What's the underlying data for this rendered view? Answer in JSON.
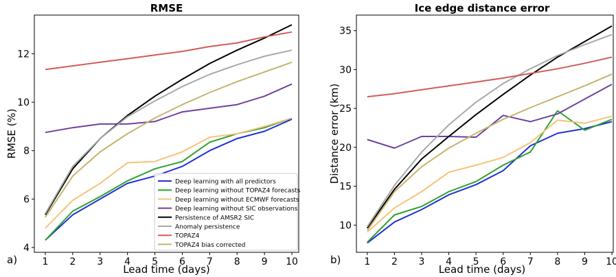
{
  "panels": [
    {
      "label": "a)"
    },
    {
      "label": "b)"
    }
  ],
  "chart_data": [
    {
      "type": "line",
      "title": "RMSE",
      "xlabel": "Lead time (days)",
      "ylabel": "RMSE (%)",
      "xlim": [
        0.6,
        10.25
      ],
      "ylim": [
        3.8,
        13.6
      ],
      "xticks": [
        1,
        2,
        3,
        4,
        5,
        6,
        7,
        8,
        9,
        10
      ],
      "yticks": [
        4,
        6,
        8,
        10,
        12
      ],
      "grid": false,
      "legend": "lower-right",
      "x": [
        1,
        2,
        3,
        4,
        5,
        6,
        7,
        8,
        9,
        10
      ],
      "series": [
        {
          "name": "Deep learning with all predictors",
          "color": "#1f2fd6",
          "values": [
            4.3,
            5.35,
            6.0,
            6.65,
            6.95,
            7.35,
            8.0,
            8.5,
            8.8,
            9.3
          ]
        },
        {
          "name": "Deep learning without TOPAZ4 forecasts",
          "color": "#2ca02c",
          "values": [
            4.3,
            5.5,
            6.1,
            6.75,
            7.25,
            7.55,
            8.35,
            8.7,
            8.95,
            9.35
          ]
        },
        {
          "name": "Deep learning without ECMWF forecasts",
          "color": "#f5c27a",
          "values": [
            4.8,
            5.95,
            6.65,
            7.5,
            7.55,
            7.95,
            8.55,
            8.7,
            9.0,
            9.35
          ]
        },
        {
          "name": "Deep learning without SIC observations",
          "color": "#6f3fa0",
          "values": [
            8.75,
            8.95,
            9.1,
            9.1,
            9.2,
            9.6,
            9.75,
            9.9,
            10.25,
            10.75
          ]
        },
        {
          "name": "Persistence of AMSR2 SIC",
          "color": "#000000",
          "values": [
            5.35,
            7.25,
            8.5,
            9.45,
            10.25,
            10.95,
            11.6,
            12.15,
            12.65,
            13.2
          ]
        },
        {
          "name": "Anomaly persistence",
          "color": "#a8a8a8",
          "values": [
            5.4,
            7.35,
            8.5,
            9.4,
            10.05,
            10.65,
            11.15,
            11.55,
            11.9,
            12.15
          ]
        },
        {
          "name": "TOPAZ4",
          "color": "#d05a5a",
          "values": [
            11.35,
            11.5,
            11.65,
            11.8,
            11.95,
            12.1,
            12.3,
            12.45,
            12.7,
            12.9
          ]
        },
        {
          "name": "TOPAZ4 bias corrected",
          "color": "#c4b46e",
          "values": [
            5.25,
            6.95,
            7.95,
            8.7,
            9.35,
            9.9,
            10.4,
            10.85,
            11.25,
            11.65
          ]
        }
      ]
    },
    {
      "type": "line",
      "title": "Ice edge distance error",
      "xlabel": "Lead time (days)",
      "ylabel": "Distance error (km)",
      "xlim": [
        0.6,
        10.05
      ],
      "ylim": [
        6.5,
        37.0
      ],
      "xticks": [
        1,
        2,
        3,
        4,
        5,
        6,
        7,
        8,
        9,
        10
      ],
      "yticks": [
        10,
        15,
        20,
        25,
        30,
        35
      ],
      "grid": false,
      "x": [
        1,
        2,
        3,
        4,
        5,
        6,
        7,
        8,
        9,
        10
      ],
      "series": [
        {
          "name": "Deep learning with all predictors",
          "color": "#1f2fd6",
          "values": [
            7.7,
            10.4,
            12.0,
            13.9,
            15.2,
            17.0,
            20.2,
            21.8,
            22.4,
            23.3
          ]
        },
        {
          "name": "Deep learning without TOPAZ4 forecasts",
          "color": "#2ca02c",
          "values": [
            7.8,
            11.3,
            12.4,
            14.3,
            15.6,
            17.7,
            19.4,
            24.7,
            22.2,
            23.6
          ]
        },
        {
          "name": "Deep learning without ECMWF forecasts",
          "color": "#f5c27a",
          "values": [
            9.1,
            12.2,
            14.3,
            16.8,
            17.7,
            18.7,
            20.6,
            23.5,
            23.1,
            24.0
          ]
        },
        {
          "name": "Deep learning without SIC observations",
          "color": "#6f3fa0",
          "values": [
            21.0,
            19.9,
            21.4,
            21.4,
            21.3,
            24.1,
            23.3,
            24.3,
            26.2,
            28.1
          ]
        },
        {
          "name": "Persistence of AMSR2 SIC",
          "color": "#000000",
          "values": [
            9.6,
            14.6,
            18.5,
            21.4,
            24.2,
            26.8,
            29.3,
            31.6,
            33.6,
            35.6
          ]
        },
        {
          "name": "Anomaly persistence",
          "color": "#a8a8a8",
          "values": [
            9.8,
            15.1,
            19.4,
            22.9,
            25.8,
            28.2,
            30.1,
            31.8,
            33.2,
            34.5
          ]
        },
        {
          "name": "TOPAZ4",
          "color": "#d05a5a",
          "values": [
            26.5,
            26.9,
            27.4,
            27.9,
            28.4,
            28.9,
            29.5,
            30.1,
            30.8,
            31.6
          ]
        },
        {
          "name": "TOPAZ4 bias corrected",
          "color": "#c4b46e",
          "values": [
            9.3,
            14.3,
            17.5,
            19.9,
            21.8,
            23.6,
            25.1,
            26.5,
            27.9,
            29.4
          ]
        }
      ]
    }
  ]
}
